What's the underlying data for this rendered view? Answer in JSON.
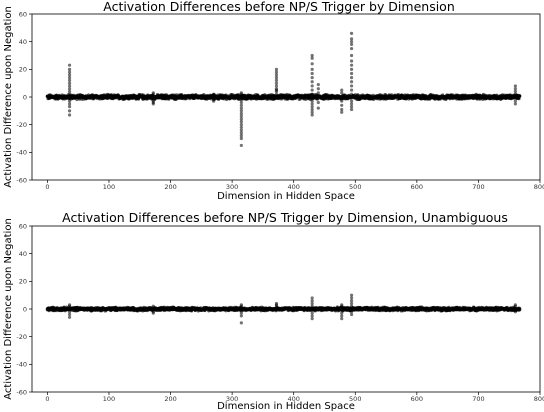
{
  "chart_data": [
    {
      "type": "scatter",
      "title": "Activation Differences before NP/S Trigger by Dimension",
      "xlabel": "Dimension in Hidden Space",
      "ylabel": "Activation Difference upon Negation",
      "xlim": [
        -25,
        800
      ],
      "ylim": [
        -60,
        60
      ],
      "xticks": [
        0,
        100,
        200,
        300,
        400,
        500,
        600,
        700,
        800
      ],
      "yticks": [
        60,
        40,
        20,
        0,
        -20,
        -40,
        -60
      ],
      "grid": false,
      "marker_color": "#000000",
      "dimensions": 768,
      "baseline_spread": 2,
      "highlighted_points": [
        {
          "x": 36,
          "values": [
            2,
            4,
            6,
            8,
            10,
            12,
            14,
            16,
            18,
            20,
            23,
            -3,
            -5,
            -7,
            -10,
            -13
          ]
        },
        {
          "x": 172,
          "values": [
            2,
            3,
            -3,
            -4,
            -5
          ]
        },
        {
          "x": 270,
          "values": [
            2,
            -2,
            -3
          ]
        },
        {
          "x": 315,
          "values": [
            -2,
            -4,
            -6,
            -8,
            -10,
            -12,
            -14,
            -16,
            -18,
            -20,
            -22,
            -24,
            -26,
            -28,
            -30,
            -35,
            2,
            3
          ]
        },
        {
          "x": 372,
          "values": [
            2,
            4,
            6,
            8,
            10,
            12,
            14,
            16,
            18,
            20,
            5
          ]
        },
        {
          "x": 430,
          "values": [
            2,
            5,
            8,
            11,
            14,
            17,
            20,
            24,
            28,
            30,
            -3,
            -5,
            -7,
            -9,
            -11,
            -13
          ]
        },
        {
          "x": 440,
          "values": [
            3,
            6,
            9,
            -4,
            -8
          ]
        },
        {
          "x": 478,
          "values": [
            3,
            5,
            -3,
            -6,
            -9,
            -11
          ]
        },
        {
          "x": 494,
          "values": [
            2,
            5,
            8,
            11,
            14,
            17,
            20,
            23,
            26,
            30,
            35,
            38,
            40,
            42,
            46,
            -3,
            -5,
            -7,
            -9
          ]
        },
        {
          "x": 760,
          "values": [
            2,
            4,
            6,
            8,
            -3,
            -5
          ]
        }
      ]
    },
    {
      "type": "scatter",
      "title": "Activation Differences before NP/S Trigger by Dimension, Unambiguous",
      "xlabel": "Dimension in Hidden Space",
      "ylabel": "Activation Difference upon Negation",
      "xlim": [
        -25,
        800
      ],
      "ylim": [
        -60,
        60
      ],
      "xticks": [
        0,
        100,
        200,
        300,
        400,
        500,
        600,
        700,
        800
      ],
      "yticks": [
        60,
        40,
        20,
        0,
        -20,
        -40,
        -60
      ],
      "grid": false,
      "marker_color": "#000000",
      "dimensions": 768,
      "baseline_spread": 1.5,
      "highlighted_points": [
        {
          "x": 36,
          "values": [
            2,
            3,
            -2,
            -4,
            -6
          ]
        },
        {
          "x": 172,
          "values": [
            2,
            -2,
            -3
          ]
        },
        {
          "x": 315,
          "values": [
            2,
            3,
            -3,
            -5,
            -10
          ]
        },
        {
          "x": 372,
          "values": [
            2,
            3,
            4
          ]
        },
        {
          "x": 430,
          "values": [
            2,
            4,
            6,
            8,
            -3,
            -5,
            -7
          ]
        },
        {
          "x": 478,
          "values": [
            2,
            3,
            -3,
            -5,
            -7
          ]
        },
        {
          "x": 494,
          "values": [
            2,
            4,
            6,
            8,
            10,
            -2,
            -4
          ]
        },
        {
          "x": 760,
          "values": [
            2,
            3,
            -2
          ]
        }
      ]
    }
  ]
}
